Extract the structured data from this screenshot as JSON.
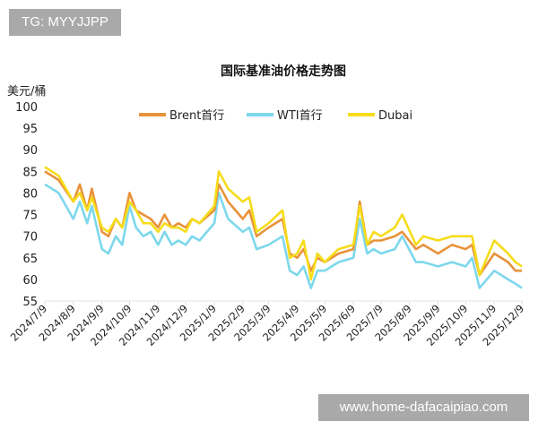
{
  "watermarks": {
    "top": "TG: MYYJJPP",
    "bottom": "www.home-dafacaipiao.com"
  },
  "chart_data": {
    "type": "line",
    "title": "国际基准油价格走势图",
    "ylabel": "美元/桶",
    "ylim": [
      55,
      100
    ],
    "yticks": [
      55,
      60,
      65,
      70,
      75,
      80,
      85,
      90,
      95,
      100
    ],
    "xlim": [
      "2024-07-09",
      "2025-12-09"
    ],
    "xtick_labels": [
      "2024/7/9",
      "2024/8/9",
      "2024/9/9",
      "2024/10/9",
      "2024/11/9",
      "2024/12/9",
      "2025/1/9",
      "2025/2/9",
      "2025/3/9",
      "2025/4/9",
      "2025/5/9",
      "2025/6/9",
      "2025/7/9",
      "2025/8/9",
      "2025/9/9",
      "2025/10/9",
      "2025/11/9",
      "2025/12/9"
    ],
    "xtick_dates": [
      "2024-07-09",
      "2024-08-09",
      "2024-09-09",
      "2024-10-09",
      "2024-11-09",
      "2024-12-09",
      "2025-01-09",
      "2025-02-09",
      "2025-03-09",
      "2025-04-09",
      "2025-05-09",
      "2025-06-09",
      "2025-07-09",
      "2025-08-09",
      "2025-09-09",
      "2025-10-09",
      "2025-11-09",
      "2025-12-09"
    ],
    "grid": false,
    "legend": "top",
    "x": [
      "2024-07-09",
      "2024-07-24",
      "2024-08-09",
      "2024-08-16",
      "2024-08-24",
      "2024-08-29",
      "2024-09-09",
      "2024-09-16",
      "2024-09-24",
      "2024-10-01",
      "2024-10-09",
      "2024-10-16",
      "2024-10-24",
      "2024-11-01",
      "2024-11-09",
      "2024-11-16",
      "2024-11-24",
      "2024-12-01",
      "2024-12-09",
      "2024-12-16",
      "2024-12-24",
      "2025-01-09",
      "2025-01-14",
      "2025-01-24",
      "2025-02-09",
      "2025-02-16",
      "2025-02-24",
      "2025-03-09",
      "2025-03-24",
      "2025-04-01",
      "2025-04-09",
      "2025-04-16",
      "2025-04-24",
      "2025-05-01",
      "2025-05-09",
      "2025-05-24",
      "2025-06-09",
      "2025-06-16",
      "2025-06-24",
      "2025-07-01",
      "2025-07-09",
      "2025-07-24",
      "2025-08-01",
      "2025-08-16",
      "2025-08-24",
      "2025-09-09",
      "2025-09-24",
      "2025-10-09",
      "2025-10-16",
      "2025-10-24",
      "2025-11-09",
      "2025-11-24",
      "2025-12-02",
      "2025-12-09"
    ],
    "series": [
      {
        "name": "Brent首行",
        "color": "#e8923a",
        "values": [
          85,
          83,
          78,
          82,
          76,
          81,
          71,
          70,
          74,
          72,
          80,
          76,
          75,
          74,
          72,
          75,
          72,
          73,
          72,
          74,
          73,
          76,
          82,
          78,
          74,
          76,
          70,
          72,
          74,
          66,
          65,
          67,
          62,
          65,
          64,
          66,
          67,
          78,
          68,
          69,
          69,
          70,
          71,
          67,
          68,
          66,
          68,
          67,
          68,
          61,
          66,
          64,
          62,
          62
        ]
      },
      {
        "name": "WTI首行",
        "color": "#7dd8ec",
        "values": [
          82,
          80,
          74,
          78,
          73,
          77,
          67,
          66,
          70,
          68,
          77,
          72,
          70,
          71,
          68,
          71,
          68,
          69,
          68,
          70,
          69,
          73,
          80,
          74,
          71,
          72,
          67,
          68,
          70,
          62,
          61,
          63,
          58,
          62,
          62,
          64,
          65,
          74,
          66,
          67,
          66,
          67,
          70,
          64,
          64,
          63,
          64,
          63,
          65,
          58,
          62,
          60,
          59,
          58
        ]
      },
      {
        "name": "Dubai",
        "color": "#f5dc1a",
        "values": [
          86,
          84,
          78,
          80,
          76,
          79,
          72,
          71,
          74,
          72,
          78,
          76,
          73,
          73,
          71,
          73,
          72,
          72,
          71,
          74,
          73,
          77,
          85,
          81,
          78,
          79,
          71,
          73,
          76,
          65,
          66,
          69,
          60,
          66,
          64,
          67,
          68,
          77,
          68,
          71,
          70,
          72,
          75,
          68,
          70,
          69,
          70,
          70,
          70,
          61,
          69,
          66,
          64,
          63
        ]
      }
    ]
  }
}
